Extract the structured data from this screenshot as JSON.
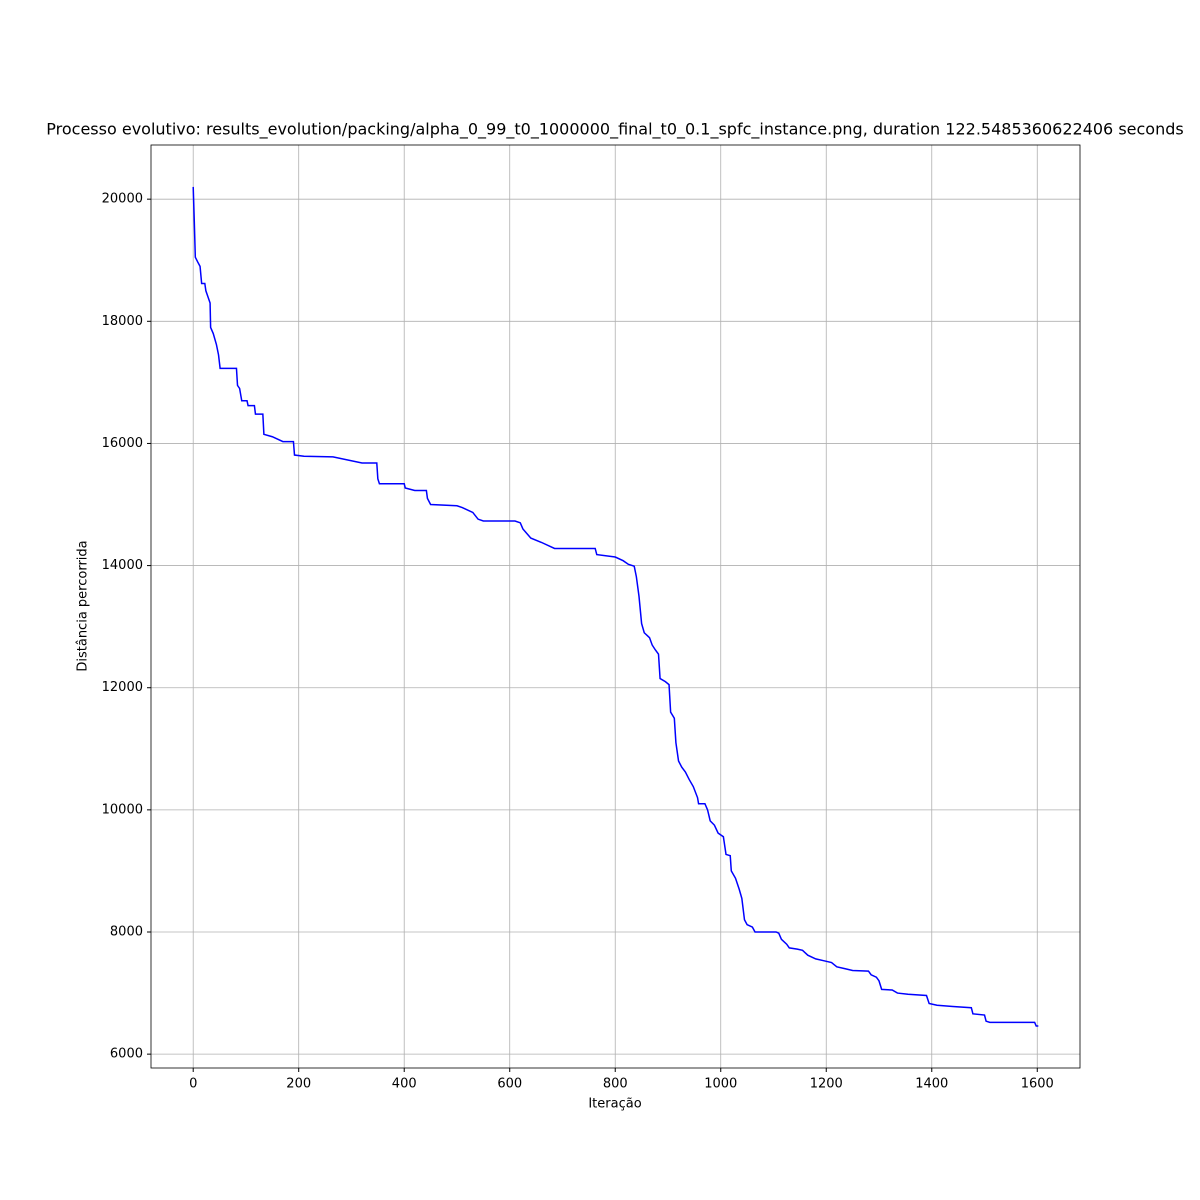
{
  "chart_data": {
    "type": "line",
    "title": "Processo evolutivo: results_evolution/packing/alpha_0_99_t0_1000000_final_t0_0.1_spfc_instance.png, duration 122.5485360622406 seconds",
    "x_label": "Iteração",
    "y_label": "Distância percorrida",
    "xlim": [
      -80,
      1681
    ],
    "ylim": [
      5773,
      20887
    ],
    "xticks": [
      0,
      200,
      400,
      600,
      800,
      1000,
      1200,
      1400,
      1600
    ],
    "yticks": [
      6000,
      8000,
      10000,
      12000,
      14000,
      16000,
      18000,
      20000
    ],
    "grid": true,
    "series": [
      {
        "color": "blue",
        "x": [
          0,
          2,
          4,
          8,
          13,
          16,
          22,
          24,
          28,
          32,
          33,
          38,
          44,
          48,
          51,
          82,
          84,
          88,
          92,
          102,
          104,
          116,
          118,
          132,
          134,
          150,
          170,
          190,
          192,
          210,
          265,
          320,
          348,
          350,
          353,
          400,
          402,
          420,
          442,
          444,
          450,
          500,
          510,
          530,
          540,
          550,
          610,
          620,
          625,
          640,
          660,
          685,
          762,
          765,
          800,
          815,
          825,
          836,
          840,
          845,
          850,
          855,
          865,
          870,
          876,
          882,
          885,
          895,
          902,
          905,
          912,
          915,
          920,
          926,
          933,
          940,
          948,
          956,
          958,
          970,
          975,
          980,
          988,
          995,
          1005,
          1010,
          1018,
          1020,
          1028,
          1035,
          1040,
          1045,
          1050,
          1060,
          1065,
          1105,
          1110,
          1115,
          1125,
          1130,
          1145,
          1155,
          1165,
          1180,
          1195,
          1210,
          1220,
          1235,
          1250,
          1280,
          1285,
          1295,
          1300,
          1305,
          1325,
          1335,
          1355,
          1390,
          1395,
          1410,
          1440,
          1475,
          1478,
          1500,
          1503,
          1510,
          1595,
          1598,
          1602
        ],
        "values": [
          20200,
          19650,
          19050,
          18980,
          18900,
          18620,
          18620,
          18500,
          18400,
          18300,
          17900,
          17800,
          17620,
          17450,
          17230,
          17230,
          16950,
          16900,
          16700,
          16700,
          16620,
          16620,
          16480,
          16480,
          16150,
          16110,
          16030,
          16030,
          15810,
          15790,
          15780,
          15680,
          15680,
          15420,
          15340,
          15340,
          15270,
          15230,
          15230,
          15100,
          15000,
          14980,
          14950,
          14870,
          14760,
          14730,
          14730,
          14700,
          14600,
          14450,
          14380,
          14280,
          14280,
          14180,
          14140,
          14080,
          14020,
          13990,
          13820,
          13500,
          13050,
          12900,
          12820,
          12700,
          12620,
          12550,
          12150,
          12100,
          12050,
          11600,
          11500,
          11100,
          10800,
          10700,
          10620,
          10500,
          10380,
          10200,
          10100,
          10100,
          10000,
          9820,
          9750,
          9620,
          9560,
          9270,
          9250,
          9000,
          8880,
          8700,
          8550,
          8200,
          8120,
          8080,
          8000,
          8000,
          7980,
          7880,
          7800,
          7740,
          7720,
          7700,
          7620,
          7560,
          7530,
          7500,
          7430,
          7400,
          7370,
          7360,
          7300,
          7260,
          7200,
          7060,
          7050,
          7000,
          6980,
          6960,
          6830,
          6800,
          6780,
          6760,
          6660,
          6640,
          6540,
          6520,
          6520,
          6460,
          6460
        ]
      }
    ]
  }
}
